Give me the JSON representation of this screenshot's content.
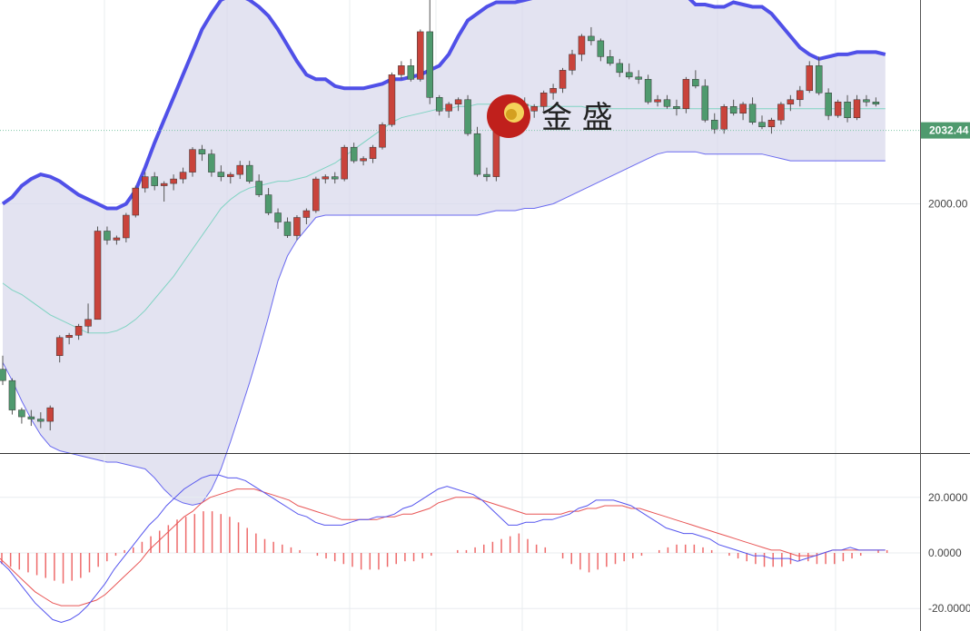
{
  "chart_data": [
    {
      "type": "candlestick",
      "title": "",
      "ylim": [
        1890,
        2090
      ],
      "y_ticks": [
        {
          "value": 2000,
          "label": "2000.00"
        }
      ],
      "current_price": {
        "value": 2032.44,
        "label": "2032.44"
      },
      "colors": {
        "up": "#c9433b",
        "down": "#4f9a6e",
        "band_fill": "#d9d9ec",
        "upper_band": "#5050e8",
        "lower_band": "#6a6af0",
        "middle_band": "#7fd3c2",
        "price_line": "#7fc6a6",
        "price_tag": "#4f9a6e"
      },
      "candles": [
        [
          1927,
          1933,
          1920,
          1922
        ],
        [
          1922,
          1923,
          1907,
          1909
        ],
        [
          1909,
          1910,
          1903,
          1906
        ],
        [
          1906,
          1909,
          1902,
          1905
        ],
        [
          1905,
          1908,
          1901,
          1904
        ],
        [
          1904,
          1911,
          1900,
          1910
        ],
        [
          1933,
          1942,
          1930,
          1941
        ],
        [
          1941,
          1943,
          1938,
          1942
        ],
        [
          1942,
          1947,
          1940,
          1946
        ],
        [
          1946,
          1956,
          1943,
          1949
        ],
        [
          1949,
          1990,
          1949,
          1988
        ],
        [
          1988,
          1990,
          1982,
          1984
        ],
        [
          1984,
          1986,
          1982,
          1985
        ],
        [
          1985,
          1996,
          1983,
          1995
        ],
        [
          1995,
          2008,
          1994,
          2007
        ],
        [
          2007,
          2014,
          2005,
          2012
        ],
        [
          2012,
          2014,
          2006,
          2008
        ],
        [
          2008,
          2010,
          2001,
          2009
        ],
        [
          2009,
          2013,
          2006,
          2011
        ],
        [
          2011,
          2016,
          2009,
          2014
        ],
        [
          2014,
          2025,
          2012,
          2024
        ],
        [
          2024,
          2026,
          2019,
          2022
        ],
        [
          2022,
          2024,
          2012,
          2014
        ],
        [
          2014,
          2017,
          2010,
          2012
        ],
        [
          2012,
          2014,
          2009,
          2013
        ],
        [
          2013,
          2019,
          2011,
          2017
        ],
        [
          2017,
          2019,
          2009,
          2010
        ],
        [
          2010,
          2013,
          2003,
          2004
        ],
        [
          2004,
          2007,
          1995,
          1996
        ],
        [
          1996,
          1998,
          1989,
          1992
        ],
        [
          1992,
          1994,
          1985,
          1986
        ],
        [
          1986,
          1995,
          1984,
          1994
        ],
        [
          1994,
          1998,
          1991,
          1997
        ],
        [
          1997,
          2012,
          1996,
          2011
        ],
        [
          2011,
          2013,
          2009,
          2012
        ],
        [
          2012,
          2014,
          2009,
          2011
        ],
        [
          2011,
          2026,
          2010,
          2025
        ],
        [
          2025,
          2027,
          2018,
          2019
        ],
        [
          2019,
          2021,
          2017,
          2020
        ],
        [
          2020,
          2026,
          2018,
          2025
        ],
        [
          2025,
          2036,
          2024,
          2035
        ],
        [
          2035,
          2058,
          2034,
          2057
        ],
        [
          2057,
          2063,
          2055,
          2061
        ],
        [
          2061,
          2064,
          2054,
          2055
        ],
        [
          2055,
          2077,
          2054,
          2076
        ],
        [
          2076,
          2110,
          2044,
          2047
        ],
        [
          2047,
          2048,
          2039,
          2041
        ],
        [
          2041,
          2045,
          2038,
          2044
        ],
        [
          2044,
          2047,
          2041,
          2046
        ],
        [
          2046,
          2048,
          2030,
          2031
        ],
        [
          2031,
          2034,
          2012,
          2013
        ],
        [
          2013,
          2016,
          2010,
          2012
        ],
        [
          2012,
          2042,
          2010,
          2040
        ],
        [
          2040,
          2045,
          2036,
          2038
        ],
        [
          2038,
          2046,
          2036,
          2044
        ],
        [
          2044,
          2047,
          2040,
          2041
        ],
        [
          2041,
          2044,
          2038,
          2043
        ],
        [
          2043,
          2050,
          2041,
          2049
        ],
        [
          2049,
          2053,
          2046,
          2051
        ],
        [
          2051,
          2060,
          2049,
          2059
        ],
        [
          2059,
          2068,
          2057,
          2066
        ],
        [
          2066,
          2075,
          2063,
          2074
        ],
        [
          2074,
          2078,
          2070,
          2072
        ],
        [
          2072,
          2073,
          2063,
          2065
        ],
        [
          2065,
          2068,
          2061,
          2062
        ],
        [
          2062,
          2064,
          2056,
          2058
        ],
        [
          2058,
          2062,
          2055,
          2056
        ],
        [
          2056,
          2059,
          2053,
          2055
        ],
        [
          2055,
          2057,
          2044,
          2045
        ],
        [
          2045,
          2048,
          2043,
          2046
        ],
        [
          2046,
          2048,
          2042,
          2043
        ],
        [
          2043,
          2046,
          2039,
          2042
        ],
        [
          2042,
          2056,
          2040,
          2055
        ],
        [
          2055,
          2059,
          2051,
          2052
        ],
        [
          2052,
          2055,
          2036,
          2037
        ],
        [
          2037,
          2040,
          2031,
          2033
        ],
        [
          2033,
          2044,
          2031,
          2043
        ],
        [
          2043,
          2046,
          2039,
          2040
        ],
        [
          2040,
          2045,
          2037,
          2044
        ],
        [
          2044,
          2047,
          2035,
          2036
        ],
        [
          2036,
          2039,
          2033,
          2034
        ],
        [
          2034,
          2038,
          2031,
          2037
        ],
        [
          2037,
          2045,
          2035,
          2044
        ],
        [
          2044,
          2048,
          2041,
          2046
        ],
        [
          2046,
          2052,
          2043,
          2050
        ],
        [
          2050,
          2063,
          2049,
          2061
        ],
        [
          2061,
          2065,
          2048,
          2049
        ],
        [
          2049,
          2051,
          2037,
          2039
        ],
        [
          2039,
          2046,
          2038,
          2045
        ],
        [
          2045,
          2048,
          2036,
          2038
        ],
        [
          2038,
          2048,
          2037,
          2046
        ],
        [
          2046,
          2048,
          2043,
          2045
        ],
        [
          2045,
          2047,
          2043,
          2044
        ]
      ],
      "upper_band": [
        2000,
        2003,
        2008,
        2011,
        2013,
        2012,
        2010,
        2007,
        2004,
        2002,
        2000,
        1998,
        1998,
        2000,
        2006,
        2016,
        2027,
        2037,
        2047,
        2057,
        2067,
        2077,
        2084,
        2090,
        2092,
        2092,
        2090,
        2087,
        2083,
        2077,
        2070,
        2063,
        2057,
        2055,
        2055,
        2052,
        2051,
        2051,
        2051,
        2052,
        2053,
        2055,
        2055,
        2056,
        2057,
        2059,
        2061,
        2066,
        2074,
        2081,
        2084,
        2087,
        2089,
        2089,
        2089,
        2090,
        2091,
        2091,
        2092,
        2094,
        2096,
        2098,
        2100,
        2101,
        2102,
        2103,
        2103,
        2103,
        2102,
        2101,
        2100,
        2097,
        2092,
        2088,
        2088,
        2087,
        2087,
        2089,
        2088,
        2087,
        2087,
        2084,
        2079,
        2074,
        2069,
        2066,
        2064,
        2065,
        2066,
        2066,
        2067,
        2067,
        2067,
        2066
      ],
      "lower_band": [
        1930,
        1922,
        1913,
        1905,
        1898,
        1893,
        1891,
        1890,
        1889,
        1888,
        1887,
        1886,
        1886,
        1885,
        1884,
        1883,
        1879,
        1874,
        1870,
        1868,
        1867,
        1868,
        1874,
        1883,
        1895,
        1908,
        1921,
        1935,
        1950,
        1966,
        1977,
        1984,
        1989,
        1994,
        1995,
        1995,
        1995,
        1995,
        1995,
        1995,
        1995,
        1995,
        1995,
        1995,
        1995,
        1995,
        1995,
        1995,
        1995,
        1995,
        1995,
        1996,
        1997,
        1997,
        1997,
        1998,
        1998,
        1999,
        2000,
        2002,
        2004,
        2006,
        2008,
        2010,
        2012,
        2014,
        2016,
        2018,
        2020,
        2022,
        2023,
        2023,
        2023,
        2023,
        2022,
        2022,
        2022,
        2022,
        2022,
        2022,
        2022,
        2021,
        2020,
        2019,
        2019,
        2019,
        2019,
        2019,
        2019,
        2019,
        2019,
        2019,
        2019,
        2019
      ],
      "middle_band": [
        1965,
        1962,
        1960,
        1957,
        1954,
        1951,
        1949,
        1947,
        1945,
        1943,
        1943,
        1943,
        1944,
        1946,
        1949,
        1953,
        1958,
        1963,
        1968,
        1974,
        1980,
        1986,
        1992,
        1998,
        2002,
        2005,
        2007,
        2008,
        2009,
        2010,
        2010,
        2011,
        2012,
        2014,
        2016,
        2018,
        2021,
        2024,
        2027,
        2030,
        2033,
        2036,
        2038,
        2039,
        2040,
        2041,
        2042,
        2042,
        2043,
        2043,
        2044,
        2044,
        2044,
        2044,
        2044,
        2044,
        2043,
        2043,
        2043,
        2043,
        2043,
        2043,
        2042,
        2042,
        2042,
        2042,
        2042,
        2042,
        2042,
        2042,
        2042,
        2042,
        2042,
        2042,
        2042,
        2042,
        2042,
        2042,
        2042,
        2042,
        2042,
        2042,
        2042,
        2042,
        2042,
        2042,
        2042,
        2042,
        2042,
        2042,
        2042,
        2042,
        2042,
        2042
      ]
    },
    {
      "type": "line+bar",
      "title": "",
      "ylim": [
        -25,
        30
      ],
      "y_ticks": [
        {
          "value": 20,
          "label": "20.0000"
        },
        {
          "value": 0,
          "label": "0.0000"
        },
        {
          "value": -20,
          "label": "-20.0000"
        }
      ],
      "colors": {
        "macd": "#5555ee",
        "signal": "#e85555",
        "histogram": "#ee6a6a"
      },
      "series": [
        {
          "values": [
            -3,
            -6,
            -10,
            -14,
            -18,
            -21,
            -24,
            -25,
            -24,
            -22,
            -19,
            -15,
            -11,
            -6,
            -2,
            2,
            6,
            10,
            13,
            17,
            20,
            23,
            25,
            27,
            28,
            28,
            27,
            27,
            26,
            24,
            22,
            20,
            18,
            16,
            14,
            13,
            11,
            10,
            10,
            10,
            11,
            12,
            12,
            13,
            13,
            14,
            16,
            17,
            19,
            21,
            23,
            24,
            23,
            22,
            21,
            19,
            16,
            13,
            10,
            10,
            11,
            11,
            12,
            12,
            13,
            14,
            16,
            17,
            19,
            19,
            19,
            18,
            17,
            15,
            13,
            11,
            9,
            8,
            7,
            7,
            6,
            5,
            3,
            2,
            1,
            0,
            -1,
            -1,
            -2,
            -2,
            -2,
            -3,
            -2,
            -1,
            0,
            1,
            1,
            2,
            1,
            1,
            1,
            1
          ]
        },
        {
          "values": [
            -2,
            -5,
            -8,
            -11,
            -14,
            -16,
            -18,
            -19,
            -19,
            -19,
            -18,
            -17,
            -15,
            -12,
            -9,
            -6,
            -3,
            1,
            4,
            7,
            10,
            13,
            15,
            18,
            20,
            21,
            22,
            23,
            23,
            23,
            22,
            21,
            20,
            19,
            17,
            16,
            15,
            14,
            13,
            12,
            12,
            12,
            12,
            12,
            13,
            13,
            14,
            14,
            15,
            16,
            18,
            19,
            20,
            20,
            20,
            19,
            18,
            17,
            16,
            15,
            14,
            14,
            14,
            14,
            14,
            15,
            15,
            16,
            16,
            17,
            17,
            17,
            16,
            16,
            15,
            14,
            13,
            12,
            11,
            10,
            9,
            8,
            7,
            6,
            5,
            4,
            3,
            2,
            1,
            1,
            0,
            -1,
            -1,
            -1,
            0,
            1,
            1,
            1,
            1,
            1,
            1,
            1
          ]
        },
        {
          "values": [
            -4,
            -5,
            -6,
            -7,
            -8,
            -9,
            -10,
            -11,
            -10,
            -9,
            -7,
            -5,
            -3,
            -1,
            1,
            2,
            4,
            6,
            8,
            10,
            12,
            13,
            14,
            15,
            15,
            14,
            13,
            11,
            9,
            7,
            5,
            4,
            3,
            2,
            1,
            0,
            -1,
            -2,
            -3,
            -4,
            -5,
            -6,
            -6,
            -6,
            -5,
            -4,
            -3,
            -3,
            -2,
            -1,
            0,
            0,
            1,
            1,
            2,
            3,
            4,
            5,
            6,
            7,
            5,
            3,
            2,
            0,
            -2,
            -4,
            -6,
            -7,
            -6,
            -5,
            -4,
            -3,
            -2,
            -1,
            0,
            1,
            2,
            3,
            3,
            3,
            2,
            1,
            0,
            -1,
            -2,
            -3,
            -4,
            -5,
            -5,
            -5,
            -4,
            -3,
            -3,
            -4,
            -4,
            -4,
            -3,
            -2,
            -1,
            0,
            1,
            1
          ]
        }
      ]
    }
  ],
  "watermark": {
    "logo": "GS",
    "text": "金 盛"
  }
}
